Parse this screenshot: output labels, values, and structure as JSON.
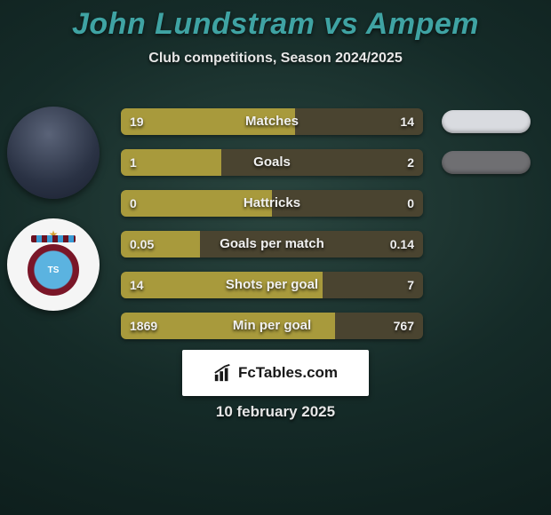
{
  "title": "John Lundstram vs Ampem",
  "subtitle": "Club competitions, Season 2024/2025",
  "date": "10 february 2025",
  "brand": "FcTables.com",
  "colors": {
    "title": "#3fa3a3",
    "text": "#e6e6e6",
    "p1_bar": "#a89a3c",
    "p2_bar": "#4a4430",
    "pill_p1": "#d9dbe0",
    "pill_p2": "#6f6f72",
    "brand_bg": "#ffffff"
  },
  "players": {
    "p1": {
      "name": "John Lundstram"
    },
    "p2": {
      "name": "Ampem"
    }
  },
  "stats": [
    {
      "label": "Matches",
      "p1": "19",
      "p2": "14",
      "p1_pct": 57.6,
      "winner": "p1"
    },
    {
      "label": "Goals",
      "p1": "1",
      "p2": "2",
      "p1_pct": 33.3,
      "winner": "p2"
    },
    {
      "label": "Hattricks",
      "p1": "0",
      "p2": "0",
      "p1_pct": 50.0,
      "winner": null
    },
    {
      "label": "Goals per match",
      "p1": "0.05",
      "p2": "0.14",
      "p1_pct": 26.3,
      "winner": "p2"
    },
    {
      "label": "Shots per goal",
      "p1": "14",
      "p2": "7",
      "p1_pct": 66.7,
      "winner": "p2"
    },
    {
      "label": "Min per goal",
      "p1": "1869",
      "p2": "767",
      "p1_pct": 70.9,
      "winner": "p2"
    }
  ],
  "pills_count": 2,
  "pills": [
    {
      "color_key": "pill_p1"
    },
    {
      "color_key": "pill_p2"
    }
  ]
}
